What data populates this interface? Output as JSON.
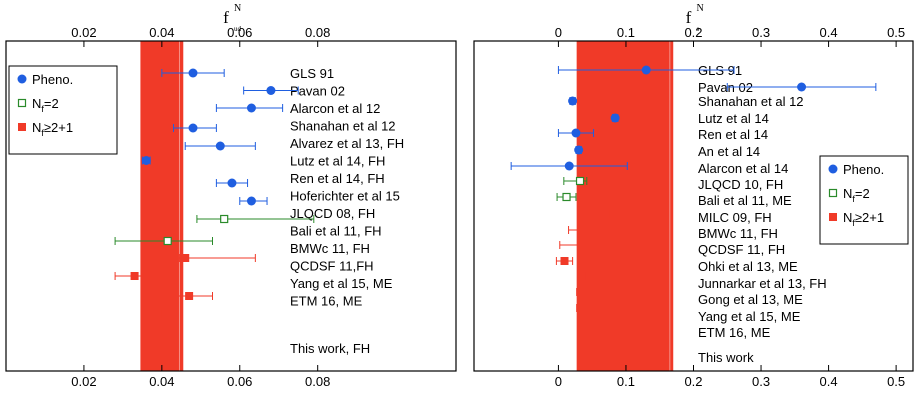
{
  "colors": {
    "pheno": "#1f5ee0",
    "nf2": "#2a8a2a",
    "nf21": "#f03a28",
    "band": "#f03a28"
  },
  "legend": [
    {
      "key": "pheno",
      "label_base": "Pheno.",
      "label_sub": "",
      "label_tail": "",
      "marker": "circle"
    },
    {
      "key": "nf2",
      "label_base": "N",
      "label_sub": "f",
      "label_tail": "=2",
      "marker": "open-square"
    },
    {
      "key": "nf21",
      "label_base": "N",
      "label_sub": "f",
      "label_tail": "≥2+1",
      "marker": "filled-square"
    }
  ],
  "chart_data": [
    {
      "type": "scatter",
      "xlabel": {
        "base": "f",
        "sub": "ud",
        "sup": "N"
      },
      "xlim": [
        0.0,
        0.1155
      ],
      "ticks": [
        0.02,
        0.04,
        0.06,
        0.08
      ],
      "tick_labels": [
        "0.02",
        "0.04",
        "0.06",
        "0.08"
      ],
      "band": [
        0.0345,
        0.0455
      ],
      "band_edge": 0.0445,
      "entries": [
        {
          "label": "GLS 91",
          "category": "pheno",
          "value": 0.048,
          "err_lo": 0.04,
          "err_hi": 0.056
        },
        {
          "label": "Pavan 02",
          "category": "pheno",
          "value": 0.068,
          "err_lo": 0.061,
          "err_hi": 0.075
        },
        {
          "label": "Alarcon et al 12",
          "category": "pheno",
          "value": 0.063,
          "err_lo": 0.054,
          "err_hi": 0.071
        },
        {
          "label": "Shanahan et al 12",
          "category": "pheno",
          "value": 0.048,
          "err_lo": 0.043,
          "err_hi": 0.054
        },
        {
          "label": "Alvarez et al 13, FH",
          "category": "pheno",
          "value": 0.055,
          "err_lo": 0.046,
          "err_hi": 0.064
        },
        {
          "label": "Lutz et al 14, FH",
          "category": "pheno",
          "value": 0.036,
          "err_lo": 0.035,
          "err_hi": 0.037
        },
        {
          "label": "Ren et al 14, FH",
          "category": "pheno",
          "value": 0.058,
          "err_lo": 0.054,
          "err_hi": 0.062
        },
        {
          "label": "Hoferichter et al 15",
          "category": "pheno",
          "value": 0.063,
          "err_lo": 0.06,
          "err_hi": 0.067
        },
        {
          "label": "JLQCD 08, FH",
          "category": "nf2",
          "value": 0.056,
          "err_lo": 0.049,
          "err_hi": 0.079
        },
        {
          "label": "Bali et al 11, FH",
          "category": "nf2",
          "value": 0.0415,
          "err_lo": 0.028,
          "err_hi": 0.053
        },
        {
          "label": "BMWc 11, FH",
          "category": "nf21",
          "value": 0.046,
          "err_lo": 0.0445,
          "err_hi": 0.064
        },
        {
          "label": "QCDSF 11,FH",
          "category": "nf21",
          "value": 0.033,
          "err_lo": 0.028,
          "err_hi": 0.038
        },
        {
          "label": "Yang et al 15, ME",
          "category": "nf21",
          "value": 0.047,
          "err_lo": 0.044,
          "err_hi": 0.053
        },
        {
          "label": "ETM 16, ME",
          "category": "nf21",
          "value": 0.041,
          "err_lo": 0.04,
          "err_hi": 0.042
        },
        {
          "label": "This work, FH",
          "category": "nf21",
          "value": 0.04,
          "err_lo": 0.0345,
          "err_hi": 0.0455
        }
      ]
    },
    {
      "type": "scatter",
      "xlabel": {
        "base": "f",
        "sub": "s",
        "sup": "N"
      },
      "xlim": [
        -0.125,
        0.525
      ],
      "ticks": [
        0.0,
        0.1,
        0.2,
        0.3,
        0.4,
        0.5
      ],
      "tick_labels": [
        "0",
        "0.1",
        "0.2",
        "0.3",
        "0.4",
        "0.5"
      ],
      "band": [
        0.027,
        0.17
      ],
      "band_edge": 0.165,
      "entries": [
        {
          "label": "GLS 91",
          "category": "pheno",
          "value": 0.13,
          "err_lo": 0.0,
          "err_hi": 0.26
        },
        {
          "label": "Pavan 02",
          "category": "pheno",
          "value": 0.36,
          "err_lo": 0.25,
          "err_hi": 0.47
        },
        {
          "label": "Shanahan et al 12",
          "category": "pheno",
          "value": 0.021,
          "err_lo": 0.017,
          "err_hi": 0.025
        },
        {
          "label": "Lutz et al 14",
          "category": "pheno",
          "value": 0.084,
          "err_lo": 0.08,
          "err_hi": 0.088
        },
        {
          "label": "Ren et al 14",
          "category": "pheno",
          "value": 0.026,
          "err_lo": 0.0,
          "err_hi": 0.052
        },
        {
          "label": "An et al 14",
          "category": "pheno",
          "value": 0.03,
          "err_lo": 0.026,
          "err_hi": 0.034
        },
        {
          "label": "Alarcon et al 14",
          "category": "pheno",
          "value": 0.016,
          "err_lo": -0.07,
          "err_hi": 0.102
        },
        {
          "label": "JLQCD 10, FH",
          "category": "nf2",
          "value": 0.032,
          "err_lo": 0.008,
          "err_hi": 0.042
        },
        {
          "label": "Bali et al 11, ME",
          "category": "nf2",
          "value": 0.012,
          "err_lo": -0.002,
          "err_hi": 0.026
        },
        {
          "label": "MILC 09, FH",
          "category": "nf21",
          "value": 0.069,
          "err_lo": 0.063,
          "err_hi": 0.075
        },
        {
          "label": "BMWc 11, FH",
          "category": "nf21",
          "value": 0.084,
          "err_lo": 0.015,
          "err_hi": 0.125
        },
        {
          "label": "QCDSF 11, FH",
          "category": "nf21",
          "value": 0.047,
          "err_lo": 0.002,
          "err_hi": 0.092
        },
        {
          "label": "Ohki et al 13, ME",
          "category": "nf21",
          "value": 0.009,
          "err_lo": -0.003,
          "err_hi": 0.021
        },
        {
          "label": "Junnarkar et al 13, FH",
          "category": "nf21",
          "value": 0.046,
          "err_lo": 0.039,
          "err_hi": 0.06
        },
        {
          "label": "Gong et al 13, ME",
          "category": "nf21",
          "value": 0.033,
          "err_lo": 0.027,
          "err_hi": 0.039
        },
        {
          "label": "Yang et al 15, ME",
          "category": "nf21",
          "value": 0.033,
          "err_lo": 0.027,
          "err_hi": 0.039
        },
        {
          "label": "ETM 16, ME",
          "category": "nf21",
          "value": 0.043,
          "err_lo": 0.037,
          "err_hi": 0.049
        },
        {
          "label": "This work",
          "category": "nf21",
          "value": 0.098,
          "err_lo": 0.027,
          "err_hi": 0.17
        }
      ]
    }
  ]
}
